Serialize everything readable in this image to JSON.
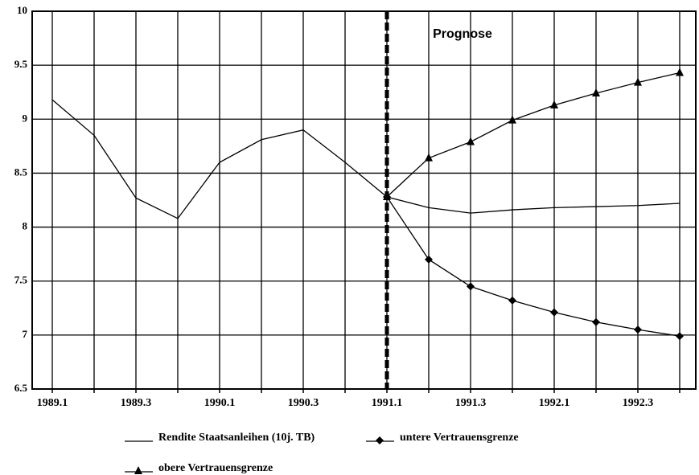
{
  "chart_data": {
    "type": "line",
    "categories": [
      "1989.1",
      null,
      "1989.3",
      null,
      "1990.1",
      null,
      "1990.3",
      null,
      "1991.1",
      null,
      "1991.3",
      null,
      "1992.1",
      null,
      "1992.3",
      null
    ],
    "series": [
      {
        "name": "Rendite Staatsanleihen (10j. TB)",
        "color": "#000000",
        "values": [
          9.18,
          8.85,
          8.27,
          8.08,
          8.6,
          8.81,
          8.9,
          8.6,
          8.28,
          8.18,
          8.13,
          8.16,
          8.18,
          8.19,
          8.2,
          8.22
        ]
      },
      {
        "name": "untere Vertrauensgrenze",
        "color": "#000000",
        "marker": "diamond",
        "values": [
          null,
          null,
          null,
          null,
          null,
          null,
          null,
          null,
          8.28,
          7.7,
          7.45,
          7.32,
          7.21,
          7.12,
          7.05,
          6.99
        ]
      },
      {
        "name": "obere Vertrauensgrenze",
        "color": "#000000",
        "marker": "triangle",
        "values": [
          null,
          null,
          null,
          null,
          null,
          null,
          null,
          null,
          8.28,
          8.64,
          8.79,
          8.99,
          9.13,
          9.24,
          9.34,
          9.43
        ]
      }
    ],
    "ylim": [
      6.5,
      10
    ],
    "yticks": [
      6.5,
      7,
      7.5,
      8,
      8.5,
      9,
      9.5,
      10
    ],
    "grid": true,
    "annotation": "Prognose"
  }
}
